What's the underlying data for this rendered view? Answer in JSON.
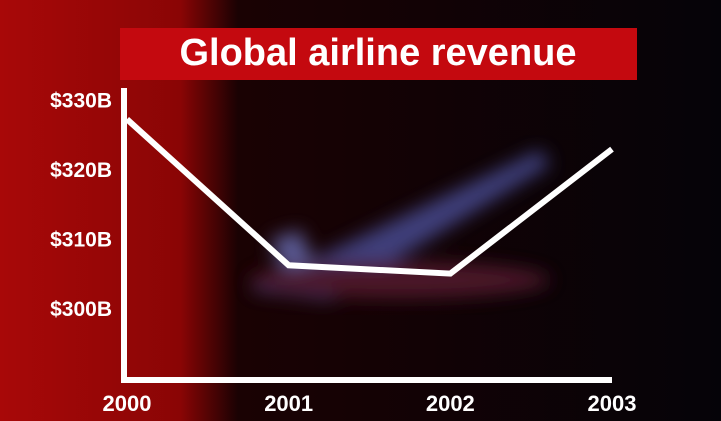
{
  "chart_data": {
    "type": "line",
    "title": "Global airline revenue",
    "categories": [
      "2000",
      "2001",
      "2002",
      "2003"
    ],
    "series": [
      {
        "color": "#ffffff",
        "values": [
          327.5,
          306.5,
          305.3,
          323.2
        ]
      }
    ],
    "ylim": [
      290,
      332
    ],
    "yticks": [
      {
        "value": 300,
        "label": "$300B"
      },
      {
        "value": 310,
        "label": "$310B"
      },
      {
        "value": 320,
        "label": "$320B"
      },
      {
        "value": 330,
        "label": "$330B"
      }
    ]
  }
}
